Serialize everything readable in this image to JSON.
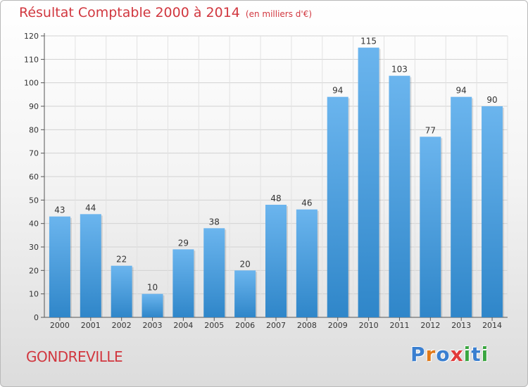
{
  "header": {
    "title": "Résultat Comptable 2000 à 2014",
    "unit": "(en milliers d'€)"
  },
  "footer": {
    "commune": "GONDREVILLE",
    "logo_letters": [
      "P",
      "r",
      "o",
      "x",
      "i",
      "t",
      "i"
    ],
    "logo_colors": [
      "#3a7fd0",
      "#e07a1b",
      "#3a7fd0",
      "#e23a3a",
      "#3aa640",
      "#3a7fd0",
      "#3aa640"
    ]
  },
  "colors": {
    "title": "#d1373f",
    "bar_top": "#6bb5ee",
    "bar_bottom": "#2f86c9"
  },
  "chart_data": {
    "type": "bar",
    "title": "Résultat Comptable 2000 à 2014",
    "subtitle": "(en milliers d'€)",
    "xlabel": "",
    "ylabel": "",
    "categories": [
      "2000",
      "2001",
      "2002",
      "2003",
      "2004",
      "2005",
      "2006",
      "2007",
      "2008",
      "2009",
      "2010",
      "2011",
      "2012",
      "2013",
      "2014"
    ],
    "values": [
      43,
      44,
      22,
      10,
      29,
      38,
      20,
      48,
      46,
      94,
      115,
      103,
      77,
      94,
      90
    ],
    "ylim": [
      0,
      120
    ],
    "yticks": [
      0,
      10,
      20,
      30,
      40,
      50,
      60,
      70,
      80,
      90,
      100,
      110,
      120
    ],
    "grid": true,
    "data_labels": true
  }
}
